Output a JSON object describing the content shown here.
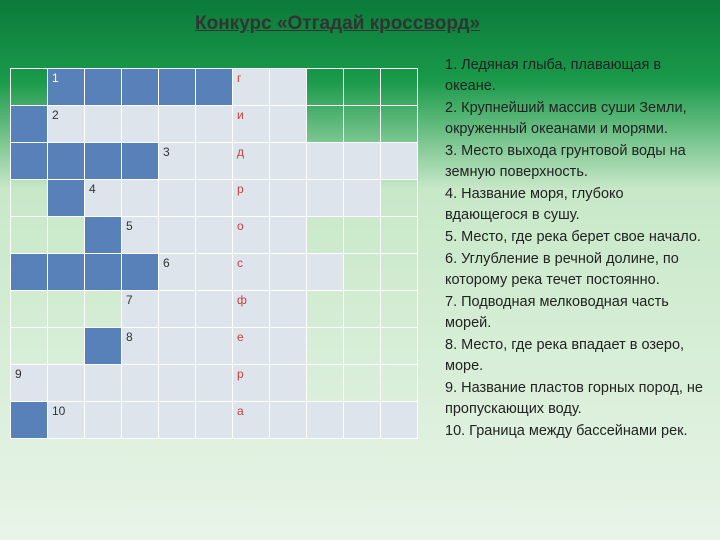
{
  "title": "Конкурс «Отгадай кроссворд»",
  "crossword": {
    "rows": 10,
    "cols": 11,
    "cell_colors": {
      "blue": "#5781b8",
      "gray": "#dde4ec"
    },
    "letter_color": "#c84040",
    "layout": [
      [
        "",
        "b:1",
        "b",
        "b",
        "b",
        "b",
        "g:г",
        "g",
        "",
        "",
        ""
      ],
      [
        "b",
        "g:2",
        "g",
        "g",
        "g",
        "g",
        "g:и",
        "g",
        "",
        "",
        ""
      ],
      [
        "b",
        "b",
        "b",
        "b",
        "g:3",
        "g",
        "g:д",
        "g",
        "g",
        "g",
        "g"
      ],
      [
        "",
        "b",
        "g:4",
        "g",
        "g",
        "g",
        "g:р",
        "g",
        "g",
        "g",
        ""
      ],
      [
        "",
        "",
        "b",
        "g:5",
        "g",
        "g",
        "g:о",
        "g",
        "",
        "",
        ""
      ],
      [
        "b",
        "b",
        "b",
        "b",
        "g:6",
        "g",
        "g:с",
        "g",
        "g",
        "",
        ""
      ],
      [
        "",
        "",
        "",
        "g:7",
        "g",
        "g",
        "g:ф",
        "g",
        "",
        "",
        ""
      ],
      [
        "",
        "",
        "b",
        "g:8",
        "g",
        "g",
        "g:е",
        "g",
        "",
        "",
        ""
      ],
      [
        "g:9",
        "g",
        "g",
        "g",
        "g",
        "g",
        "g:р",
        "g",
        "",
        "",
        ""
      ],
      [
        "b",
        "g:10",
        "g",
        "g",
        "g",
        "g",
        "g:а",
        "g",
        "g",
        "g",
        "g"
      ]
    ]
  },
  "clues": [
    "1. Ледяная глыба, плавающая в океане.",
    "2. Крупнейший массив суши Земли, окруженный океанами и морями.",
    "3. Место выхода грунтовой воды на земную поверхность.",
    "4. Название моря, глубоко вдающегося в сушу.",
    "5. Место, где река берет свое начало.",
    "6. Углубление в речной долине, по которому река течет постоянно.",
    "7. Подводная мелководная часть морей.",
    "8. Место, где река впадает в озеро, море.",
    "9. Название пластов горных пород, не пропускающих воду.",
    "10. Граница между бассейнами рек."
  ]
}
